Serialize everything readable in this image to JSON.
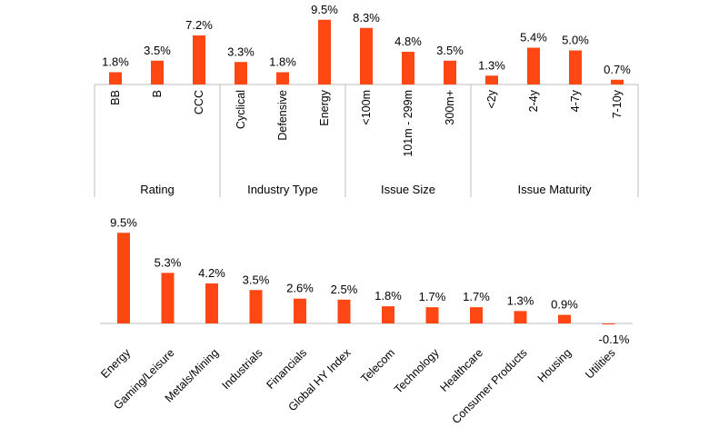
{
  "colors": {
    "bar": "#ff4713",
    "axis": "#bdbdbd",
    "text": "#000000"
  },
  "chart_data": [
    {
      "type": "bar",
      "title": "",
      "ylabel": "",
      "groups": [
        {
          "name": "Rating",
          "categories": [
            "BB",
            "B",
            "CCC"
          ],
          "values": [
            1.8,
            3.5,
            7.2
          ],
          "labels": [
            "1.8%",
            "3.5%",
            "7.2%"
          ]
        },
        {
          "name": "Industry Type",
          "categories": [
            "Cyclical",
            "Defensive",
            "Energy"
          ],
          "values": [
            3.3,
            1.8,
            9.5
          ],
          "labels": [
            "3.3%",
            "1.8%",
            "9.5%"
          ]
        },
        {
          "name": "Issue Size",
          "categories": [
            "<100m",
            "101m - 299m",
            "300m+"
          ],
          "values": [
            8.3,
            4.8,
            3.5
          ],
          "labels": [
            "8.3%",
            "4.8%",
            "3.5%"
          ]
        },
        {
          "name": "Issue Maturity",
          "categories": [
            "<2y",
            "2-4y",
            "4-7y",
            "7-10y"
          ],
          "values": [
            1.3,
            5.4,
            5.0,
            0.7
          ],
          "labels": [
            "1.3%",
            "5.4%",
            "5.0%",
            "0.7%"
          ]
        }
      ]
    },
    {
      "type": "bar",
      "title": "",
      "ylabel": "",
      "categories": [
        "Energy",
        "Gaming/Leisure",
        "Metals/Mining",
        "Industrials",
        "Financials",
        "Global HY Index",
        "Telecom",
        "Technology",
        "Healthcare",
        "Consumer Products",
        "Housing",
        "Utilities"
      ],
      "values": [
        9.5,
        5.3,
        4.2,
        3.5,
        2.6,
        2.5,
        1.8,
        1.7,
        1.7,
        1.3,
        0.9,
        -0.1
      ],
      "labels": [
        "9.5%",
        "5.3%",
        "4.2%",
        "3.5%",
        "2.6%",
        "2.5%",
        "1.8%",
        "1.7%",
        "1.7%",
        "1.3%",
        "0.9%",
        "-0.1%"
      ]
    }
  ]
}
